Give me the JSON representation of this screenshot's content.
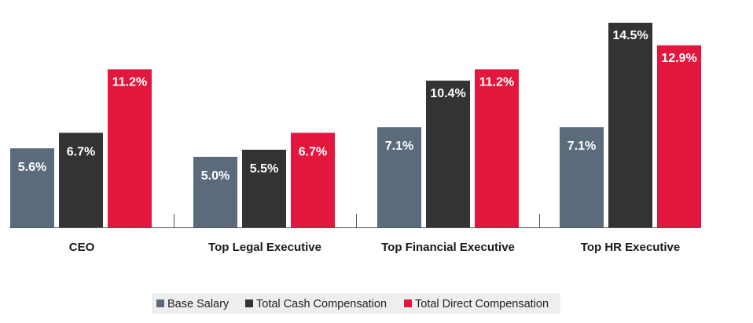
{
  "chart_data": {
    "type": "bar",
    "title": "",
    "xlabel": "",
    "ylabel": "",
    "ylim": [
      0,
      14.5
    ],
    "grid": false,
    "legend_position": "bottom-center",
    "categories": [
      "CEO",
      "Top Legal Executive",
      "Top Financial Executive",
      "Top HR Executive"
    ],
    "series": [
      {
        "name": "Base Salary",
        "color": "#5b6b7b",
        "values": [
          5.6,
          5.0,
          7.1,
          7.1
        ],
        "labels": [
          "5.6%",
          "5.0%",
          "7.1%",
          "7.1%"
        ]
      },
      {
        "name": "Total Cash Compensation",
        "color": "#333333",
        "values": [
          6.7,
          5.5,
          10.4,
          14.5
        ],
        "labels": [
          "6.7%",
          "5.5%",
          "10.4%",
          "14.5%"
        ]
      },
      {
        "name": "Total Direct Compensation",
        "color": "#e3173e",
        "values": [
          11.2,
          6.7,
          11.2,
          12.9
        ],
        "labels": [
          "11.2%",
          "6.7%",
          "11.2%",
          "12.9%"
        ]
      }
    ]
  }
}
